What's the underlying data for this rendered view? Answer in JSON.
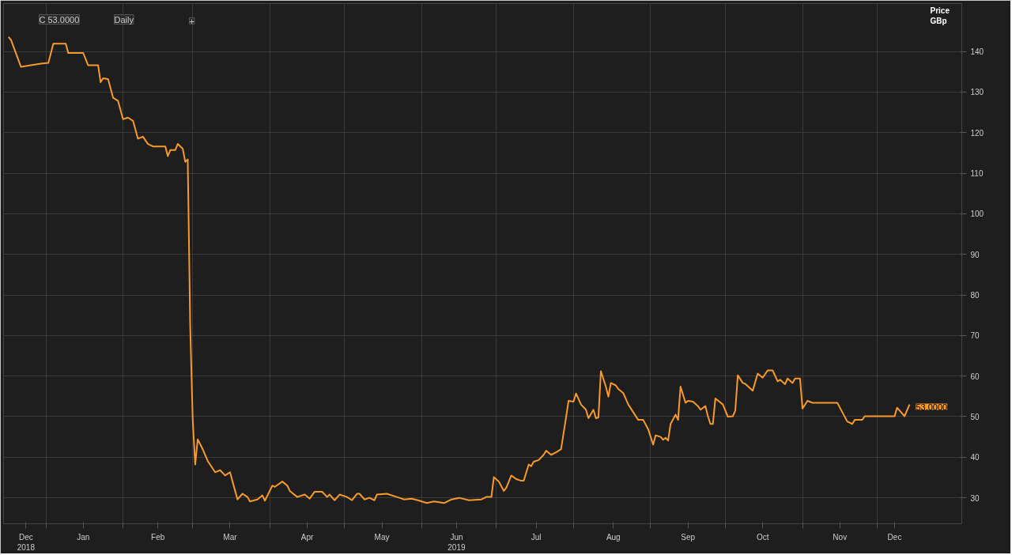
{
  "chart_data": {
    "type": "line",
    "ylabel": "Price\nGBp",
    "annotations": [
      "C 53.0000",
      "Daily",
      "+",
      {
        "text": "53.0000",
        "x": "2019-12-14",
        "y": 53
      }
    ],
    "x": [
      "2018-12-17",
      "2018-12-18",
      "2018-12-22",
      "2018-12-26",
      "2018-12-30",
      "2019-01-02",
      "2019-01-04",
      "2019-01-09",
      "2019-01-10",
      "2019-01-16",
      "2019-01-18",
      "2019-01-22",
      "2019-01-23",
      "2019-01-24",
      "2019-01-26",
      "2019-01-28",
      "2019-01-30",
      "2019-02-01",
      "2019-02-03",
      "2019-02-05",
      "2019-02-07",
      "2019-02-09",
      "2019-02-11",
      "2019-02-13",
      "2019-02-18",
      "2019-02-19",
      "2019-02-20",
      "2019-02-22",
      "2019-02-23",
      "2019-02-25",
      "2019-02-26",
      "2019-02-27",
      "2019-02-28",
      "2019-03-01",
      "2019-03-02",
      "2019-03-03",
      "2019-03-05",
      "2019-03-07",
      "2019-03-10",
      "2019-03-12",
      "2019-03-14",
      "2019-03-16",
      "2019-03-17",
      "2019-03-19",
      "2019-03-21",
      "2019-03-23",
      "2019-03-24",
      "2019-03-27",
      "2019-03-29",
      "2019-03-30",
      "2019-04-02",
      "2019-04-03",
      "2019-04-06",
      "2019-04-08",
      "2019-04-09",
      "2019-04-12",
      "2019-04-15",
      "2019-04-17",
      "2019-04-19",
      "2019-04-22",
      "2019-04-24",
      "2019-04-25",
      "2019-04-27",
      "2019-04-29",
      "2019-05-02",
      "2019-05-04",
      "2019-05-06",
      "2019-05-07",
      "2019-05-09",
      "2019-05-11",
      "2019-05-13",
      "2019-05-14",
      "2019-05-18",
      "2019-05-22",
      "2019-05-25",
      "2019-05-28",
      "2019-05-31",
      "2019-06-03",
      "2019-06-06",
      "2019-06-10",
      "2019-06-13",
      "2019-06-16",
      "2019-06-20",
      "2019-06-25",
      "2019-06-27",
      "2019-06-29",
      "2019-06-30",
      "2019-07-02",
      "2019-07-04",
      "2019-07-05",
      "2019-07-07",
      "2019-07-09",
      "2019-07-11",
      "2019-07-12",
      "2019-07-14",
      "2019-07-15",
      "2019-07-16",
      "2019-07-18",
      "2019-07-20",
      "2019-07-21",
      "2019-07-23",
      "2019-07-25",
      "2019-07-27",
      "2019-07-29",
      "2019-07-30",
      "2019-08-01",
      "2019-08-02",
      "2019-08-04",
      "2019-08-06",
      "2019-08-07",
      "2019-08-09",
      "2019-08-10",
      "2019-08-11",
      "2019-08-12",
      "2019-08-14",
      "2019-08-15",
      "2019-08-16",
      "2019-08-18",
      "2019-08-19",
      "2019-08-21",
      "2019-08-23",
      "2019-08-25",
      "2019-08-27",
      "2019-08-29",
      "2019-08-31",
      "2019-09-02",
      "2019-09-03",
      "2019-09-05",
      "2019-09-06",
      "2019-09-07",
      "2019-09-08",
      "2019-09-09",
      "2019-09-11",
      "2019-09-12",
      "2019-09-13",
      "2019-09-15",
      "2019-09-16",
      "2019-09-18",
      "2019-09-20",
      "2019-09-21",
      "2019-09-23",
      "2019-09-24",
      "2019-09-25",
      "2019-09-26",
      "2019-09-27",
      "2019-09-30",
      "2019-10-02",
      "2019-10-04",
      "2019-10-05",
      "2019-10-06",
      "2019-10-08",
      "2019-10-09",
      "2019-10-12",
      "2019-10-14",
      "2019-10-16",
      "2019-10-18",
      "2019-10-20",
      "2019-10-22",
      "2019-10-23",
      "2019-10-25",
      "2019-10-26",
      "2019-10-28",
      "2019-10-29",
      "2019-10-31",
      "2019-11-01",
      "2019-11-03",
      "2019-11-05",
      "2019-11-15",
      "2019-11-17",
      "2019-11-19",
      "2019-11-21",
      "2019-11-22",
      "2019-11-25",
      "2019-11-26",
      "2019-12-08",
      "2019-12-09",
      "2019-12-12",
      "2019-12-14"
    ],
    "series": [
      {
        "color": "#f7992d",
        "values": [
          143.6,
          142.8,
          136.2,
          136.6,
          137,
          137.2,
          141.9,
          141.9,
          139.6,
          139.6,
          136.6,
          136.6,
          132.4,
          133.4,
          133.2,
          128.6,
          127.8,
          123.3,
          123.7,
          122.9,
          118.5,
          119,
          117.2,
          116.6,
          116.6,
          114.2,
          115.7,
          115.7,
          117.2,
          116,
          112.8,
          113.4,
          72,
          49.2,
          38.2,
          44.4,
          42,
          39.1,
          36.3,
          36.8,
          35.5,
          36.3,
          34,
          29.6,
          31,
          30.2,
          29.1,
          29.6,
          30.6,
          29.3,
          33,
          32.7,
          34,
          33,
          31.7,
          30.2,
          30.8,
          29.8,
          31.5,
          31.5,
          30.2,
          30.8,
          29.4,
          30.8,
          30.2,
          29.4,
          31,
          31,
          29.6,
          30,
          29.4,
          30.8,
          31,
          30.2,
          29.6,
          29.8,
          29.3,
          28.7,
          29.1,
          28.7,
          29.6,
          30,
          29.4,
          29.6,
          30.2,
          30.2,
          35.1,
          34,
          31.7,
          32.5,
          35.5,
          34.6,
          34.2,
          34.2,
          38.2,
          37.8,
          38.9,
          39.3,
          40.6,
          41.6,
          40.6,
          41.2,
          42,
          49.8,
          53.9,
          53.7,
          55.7,
          53,
          51.7,
          49.6,
          51.7,
          49.6,
          49.8,
          61.2,
          57.4,
          54.9,
          58.3,
          57.7,
          56.8,
          55.8,
          53,
          51.1,
          49.2,
          49.2,
          46.9,
          43.1,
          45.4,
          45,
          44.3,
          44.8,
          44.1,
          48.2,
          50.5,
          49.2,
          57.4,
          53.4,
          53.9,
          53.7,
          52.6,
          51.7,
          52.6,
          50.1,
          48.2,
          48.2,
          54.5,
          53,
          50,
          50.1,
          51.5,
          60.2,
          58.3,
          58.1,
          56.4,
          60.6,
          59.6,
          61.4,
          61.4,
          58.7,
          59.1,
          58,
          59.4,
          58.3,
          59.4,
          59.4,
          52,
          53.9,
          53.4,
          53.4,
          51.1,
          48.8,
          48.2,
          49.2,
          49.2,
          50.1,
          50.1,
          52.2,
          50.1,
          53
        ]
      }
    ],
    "xlim": [
      "2018-12-15",
      "2020-01-04"
    ],
    "ylim": [
      23.6,
      151.8
    ],
    "yticks": [
      30,
      40,
      50,
      60,
      70,
      80,
      90,
      100,
      110,
      120,
      130,
      140
    ],
    "xticks": [
      {
        "value": "2018-12-24",
        "label": "Dec\n2018"
      },
      {
        "value": "2019-01-01",
        "label": null
      },
      {
        "value": "2019-01-16",
        "label": "Jan"
      },
      {
        "value": "2019-02-01",
        "label": null
      },
      {
        "value": "2019-02-15",
        "label": "Feb"
      },
      {
        "value": "2019-03-01",
        "label": null
      },
      {
        "value": "2019-03-16",
        "label": "Mar"
      },
      {
        "value": "2019-04-01",
        "label": null
      },
      {
        "value": "2019-04-16",
        "label": "Apr"
      },
      {
        "value": "2019-05-01",
        "label": null
      },
      {
        "value": "2019-05-16",
        "label": "May"
      },
      {
        "value": "2019-06-01",
        "label": null
      },
      {
        "value": "2019-06-15",
        "label": "Jun\n2019"
      },
      {
        "value": "2019-07-01",
        "label": null
      },
      {
        "value": "2019-07-17",
        "label": "Jul"
      },
      {
        "value": "2019-08-01",
        "label": null
      },
      {
        "value": "2019-08-17",
        "label": "Aug"
      },
      {
        "value": "2019-09-01",
        "label": null
      },
      {
        "value": "2019-09-16",
        "label": "Sep"
      },
      {
        "value": "2019-10-01",
        "label": null
      },
      {
        "value": "2019-10-16",
        "label": "Oct"
      },
      {
        "value": "2019-11-01",
        "label": null
      },
      {
        "value": "2019-11-16",
        "label": "Nov"
      },
      {
        "value": "2019-12-01",
        "label": null
      },
      {
        "value": "2019-12-08",
        "label": "Dec"
      }
    ],
    "grid": true,
    "marker": "none",
    "line_style": "solid"
  }
}
